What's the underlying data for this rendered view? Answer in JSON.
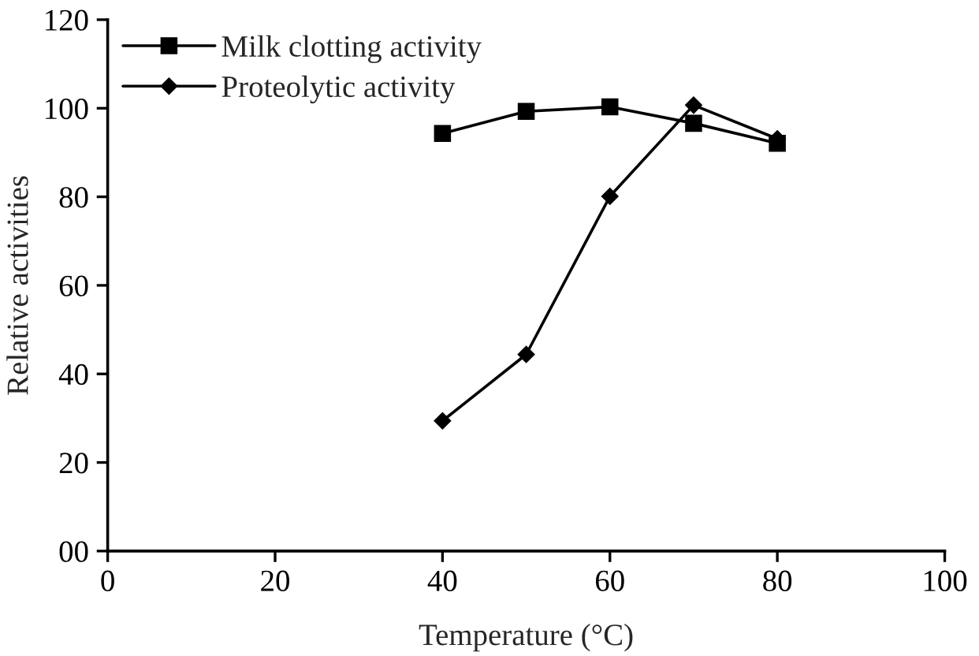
{
  "chart_data": {
    "type": "line",
    "xlabel": "Temperature (°C)",
    "ylabel": "Relative activities",
    "x": [
      40,
      50,
      60,
      70,
      80
    ],
    "series": [
      {
        "name": "Milk clotting activity",
        "color": "#000000",
        "marker": "square",
        "values": [
          94.3,
          99.3,
          100.3,
          96.6,
          92.1
        ]
      },
      {
        "name": "Proteolytic activity",
        "color": "#000000",
        "marker": "diamond",
        "values": [
          29.4,
          44.4,
          80.1,
          100.7,
          93.1
        ]
      }
    ],
    "xlim": [
      0,
      100
    ],
    "xticks": [
      0,
      20,
      40,
      60,
      80,
      100
    ],
    "ylim": [
      0,
      120
    ],
    "yticks": [
      {
        "value": 0,
        "label": "00"
      },
      20,
      40,
      60,
      80,
      100,
      120
    ],
    "grid": false,
    "legend": "top left",
    "line_style": "solid"
  }
}
